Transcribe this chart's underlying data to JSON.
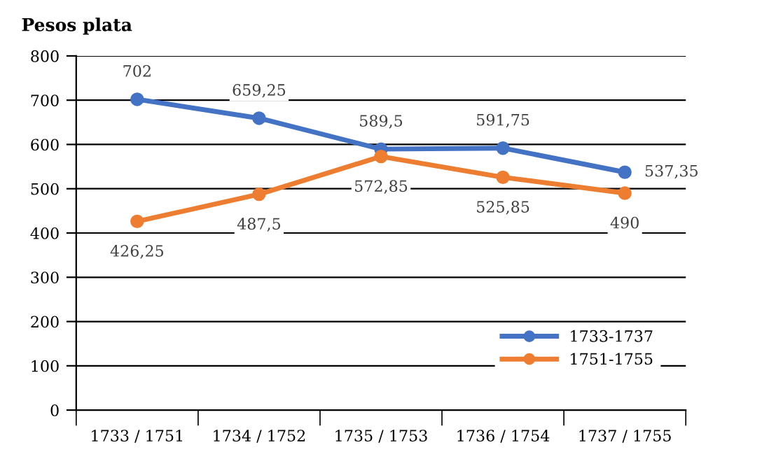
{
  "chart_data": {
    "type": "line",
    "ylabel": "Pesos plata",
    "categories": [
      "1733 / 1751",
      "1734 / 1752",
      "1735 / 1753",
      "1736 / 1754",
      "1737 / 1755"
    ],
    "series": [
      {
        "name": "1733-1737",
        "color": "#4472c4",
        "values": [
          702,
          659.25,
          589.5,
          591.75,
          537.35
        ],
        "value_labels": [
          "702",
          "659,25",
          "589,5",
          "591,75",
          "537,35"
        ]
      },
      {
        "name": "1751-1755",
        "color": "#ed7d31",
        "values": [
          426.25,
          487.5,
          572.85,
          525.85,
          490
        ],
        "value_labels": [
          "426,25",
          "487,5",
          "572,85",
          "525,85",
          "490"
        ]
      }
    ],
    "ylim": [
      0,
      800
    ],
    "yticks": [
      0,
      100,
      200,
      300,
      400,
      500,
      600,
      700,
      800
    ],
    "grid": "y",
    "legend": "bottom right",
    "marker": "circle",
    "line_style": "solid"
  }
}
